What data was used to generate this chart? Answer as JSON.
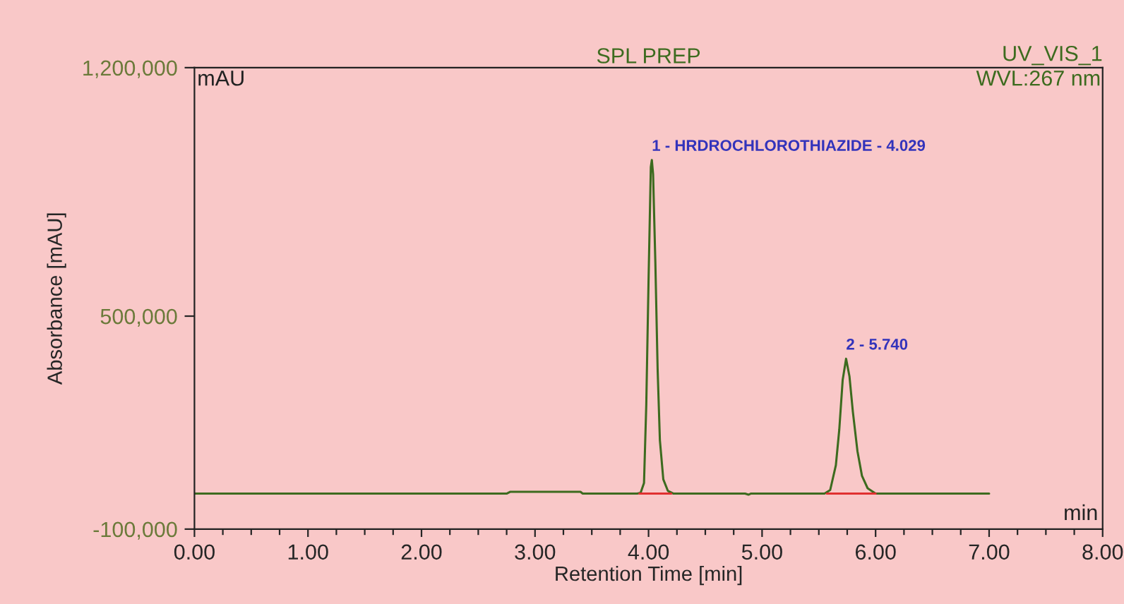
{
  "chart_data": {
    "type": "line",
    "title": "SPL PREP",
    "xlabel": "Retention Time [min]",
    "ylabel": "Absorbance [mAU]",
    "annotations": [
      "UV_VIS_1",
      "WVL:267 nm",
      "mAU",
      "min",
      {
        "text": "1 - HRDROCHLOROTHIAZIDE - 4.029",
        "x": 4.029,
        "y": 940000
      },
      {
        "text": "2 - 5.740",
        "x": 5.74,
        "y": 380000
      }
    ],
    "series": [
      {
        "color": "#3d6b1f",
        "x": [
          0,
          2.75,
          2.78,
          3.4,
          3.42,
          3.9,
          3.93,
          3.96,
          3.98,
          4.0,
          4.02,
          4.029,
          4.04,
          4.06,
          4.08,
          4.1,
          4.13,
          4.17,
          4.22,
          4.85,
          4.88,
          4.9,
          5.55,
          5.6,
          5.65,
          5.68,
          5.71,
          5.74,
          5.77,
          5.8,
          5.84,
          5.88,
          5.93,
          6.0,
          7.0
        ],
        "values": [
          0,
          0,
          5000,
          5000,
          0,
          0,
          2000,
          30000,
          250000,
          600000,
          920000,
          940000,
          900000,
          650000,
          350000,
          150000,
          40000,
          8000,
          0,
          0,
          -3000,
          0,
          0,
          10000,
          80000,
          180000,
          320000,
          380000,
          330000,
          230000,
          120000,
          50000,
          15000,
          0,
          0
        ]
      },
      {
        "color": "#e03030",
        "x": [
          3.92,
          4.2,
          4.21,
          5.57,
          6.0
        ],
        "values": [
          0,
          0,
          null,
          0,
          0
        ]
      }
    ],
    "xlim": [
      0,
      8
    ],
    "ylim": [
      -100000,
      1200000
    ],
    "xticks": [
      {
        "value": 0,
        "label": "0.00"
      },
      {
        "value": 0.25,
        "label": null
      },
      {
        "value": 0.5,
        "label": null
      },
      {
        "value": 0.75,
        "label": null
      },
      {
        "value": 1,
        "label": "1.00"
      },
      {
        "value": 1.25,
        "label": null
      },
      {
        "value": 1.5,
        "label": null
      },
      {
        "value": 1.75,
        "label": null
      },
      {
        "value": 2,
        "label": "2.00"
      },
      {
        "value": 2.25,
        "label": null
      },
      {
        "value": 2.5,
        "label": null
      },
      {
        "value": 2.75,
        "label": null
      },
      {
        "value": 3,
        "label": "3.00"
      },
      {
        "value": 3.25,
        "label": null
      },
      {
        "value": 3.5,
        "label": null
      },
      {
        "value": 3.75,
        "label": null
      },
      {
        "value": 4,
        "label": "4.00"
      },
      {
        "value": 4.25,
        "label": null
      },
      {
        "value": 4.5,
        "label": null
      },
      {
        "value": 4.75,
        "label": null
      },
      {
        "value": 5,
        "label": "5.00"
      },
      {
        "value": 5.25,
        "label": null
      },
      {
        "value": 5.5,
        "label": null
      },
      {
        "value": 5.75,
        "label": null
      },
      {
        "value": 6,
        "label": "6.00"
      },
      {
        "value": 6.25,
        "label": null
      },
      {
        "value": 6.5,
        "label": null
      },
      {
        "value": 6.75,
        "label": null
      },
      {
        "value": 7,
        "label": "7.00"
      },
      {
        "value": 7.25,
        "label": null
      },
      {
        "value": 7.5,
        "label": null
      },
      {
        "value": 7.75,
        "label": null
      },
      {
        "value": 8,
        "label": "8.00"
      }
    ],
    "yticks": [
      {
        "value": -100000,
        "label": "-100,000"
      },
      {
        "value": 500000,
        "label": "500,000"
      },
      {
        "value": 1200000,
        "label": "1,200,000"
      }
    ],
    "grid": false,
    "legend": false,
    "marker": "none",
    "line_style": "solid"
  }
}
